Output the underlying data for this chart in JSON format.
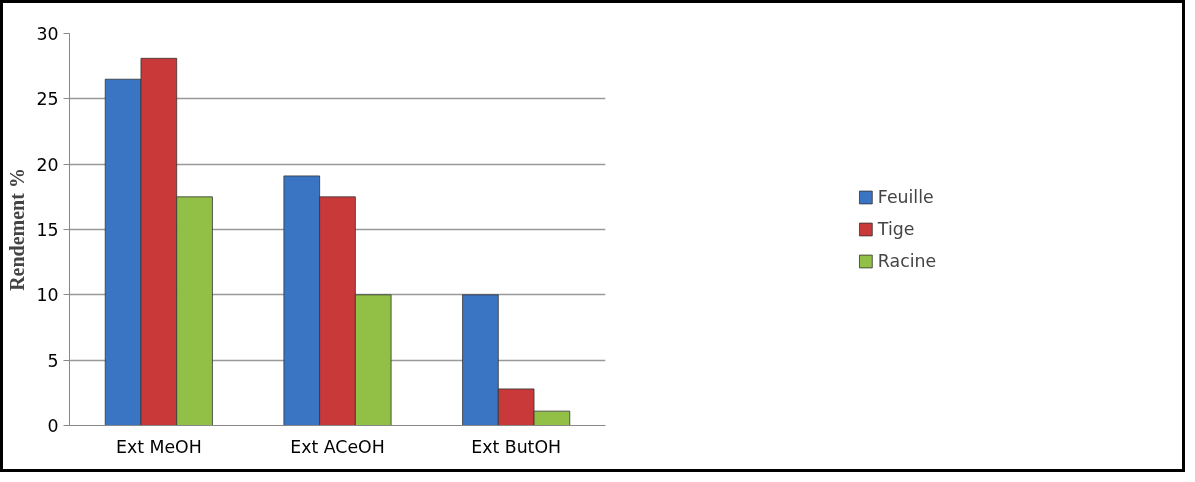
{
  "chart_data": {
    "type": "bar",
    "ylabel": "Rendement %",
    "categories": [
      "Ext MeOH",
      "Ext ACeOH",
      "Ext ButOH"
    ],
    "series": [
      {
        "name": "Feuille",
        "color": "#3a75c4",
        "values": [
          26.5,
          19.1,
          10.0
        ]
      },
      {
        "name": "Tige",
        "color": "#c9393a",
        "values": [
          28.1,
          17.5,
          2.8
        ]
      },
      {
        "name": "Racine",
        "color": "#92c047",
        "values": [
          17.5,
          10.0,
          1.1
        ]
      }
    ],
    "ylim": [
      0,
      30
    ],
    "yticks": [
      0,
      5,
      10,
      15,
      20,
      25,
      30
    ],
    "grid": "y",
    "legend": "right"
  }
}
